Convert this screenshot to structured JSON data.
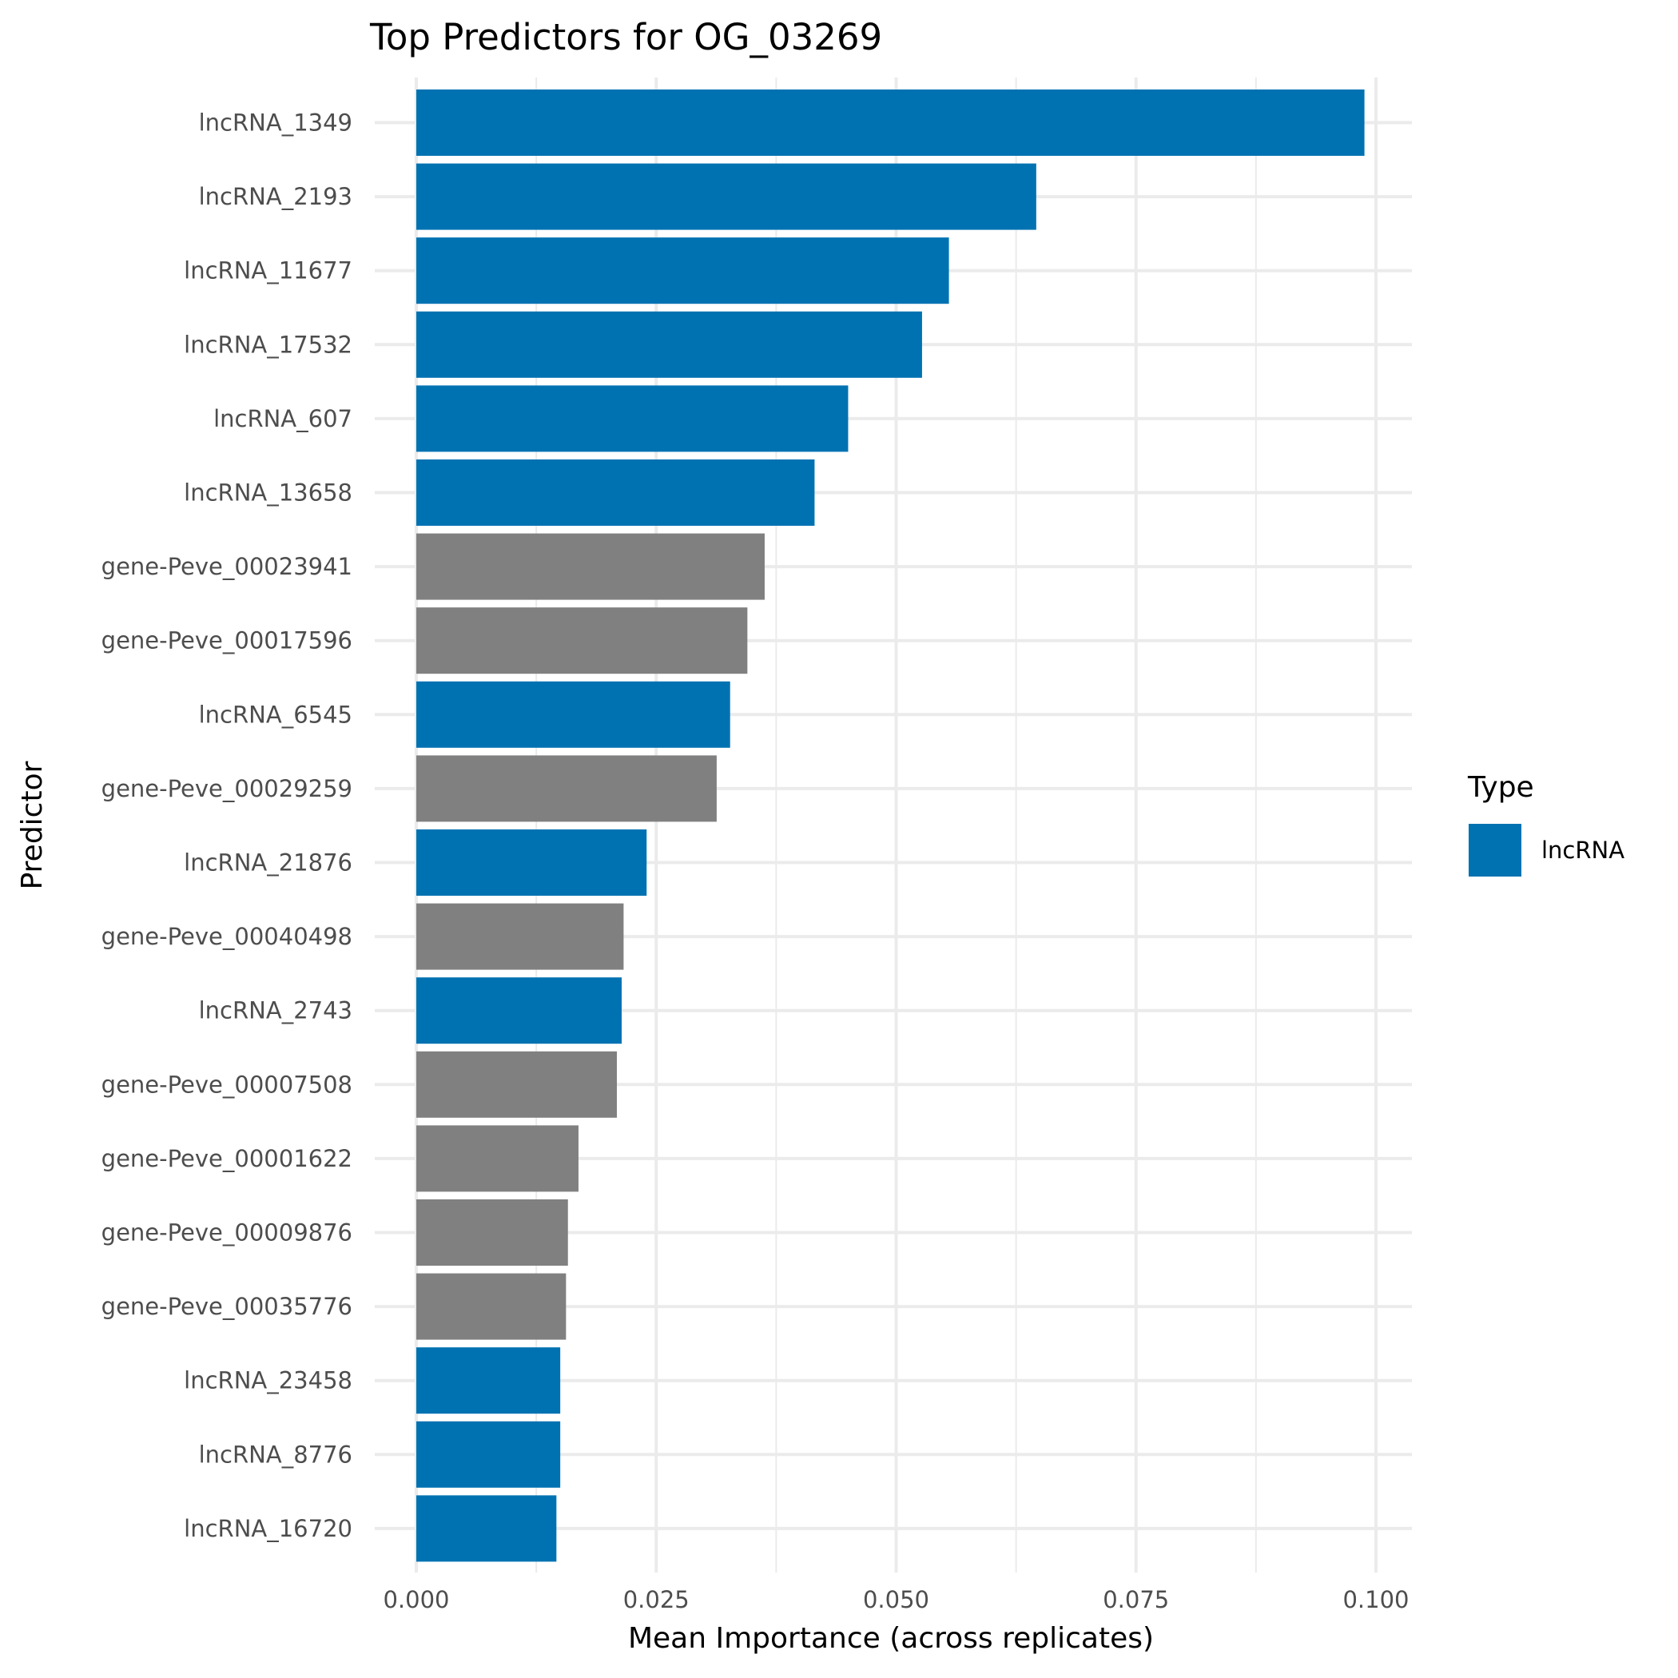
{
  "chart_data": {
    "type": "bar",
    "orientation": "horizontal",
    "title": "Top Predictors for OG_03269",
    "xlabel": "Mean Importance (across replicates)",
    "ylabel": "Predictor",
    "xlim": [
      0,
      0.1
    ],
    "xticks": [
      "0.000",
      "0.025",
      "0.050",
      "0.075",
      "0.100"
    ],
    "xtick_values": [
      0,
      0.025,
      0.05,
      0.075,
      0.1
    ],
    "grid": true,
    "legend": {
      "title": "Type",
      "placement": "right",
      "entries": [
        {
          "label": "lncRNA",
          "color": "#0072B2"
        }
      ]
    },
    "colors": {
      "lncRNA": "#0072B2",
      "gene": "#808080"
    },
    "categories": [
      "lncRNA_1349",
      "lncRNA_2193",
      "lncRNA_11677",
      "lncRNA_17532",
      "lncRNA_607",
      "lncRNA_13658",
      "gene-Peve_00023941",
      "gene-Peve_00017596",
      "lncRNA_6545",
      "gene-Peve_00029259",
      "lncRNA_21876",
      "gene-Peve_00040498",
      "lncRNA_2743",
      "gene-Peve_00007508",
      "gene-Peve_00001622",
      "gene-Peve_00009876",
      "gene-Peve_00035776",
      "lncRNA_23458",
      "lncRNA_8776",
      "lncRNA_16720"
    ],
    "types": [
      "lncRNA",
      "lncRNA",
      "lncRNA",
      "lncRNA",
      "lncRNA",
      "lncRNA",
      "gene",
      "gene",
      "lncRNA",
      "gene",
      "lncRNA",
      "gene",
      "lncRNA",
      "gene",
      "gene",
      "gene",
      "gene",
      "lncRNA",
      "lncRNA",
      "lncRNA"
    ],
    "values": [
      0.0988,
      0.0646,
      0.0555,
      0.0527,
      0.045,
      0.0415,
      0.0363,
      0.0345,
      0.0327,
      0.0313,
      0.024,
      0.0216,
      0.0214,
      0.0209,
      0.0169,
      0.0158,
      0.0156,
      0.015,
      0.015,
      0.0146
    ]
  }
}
